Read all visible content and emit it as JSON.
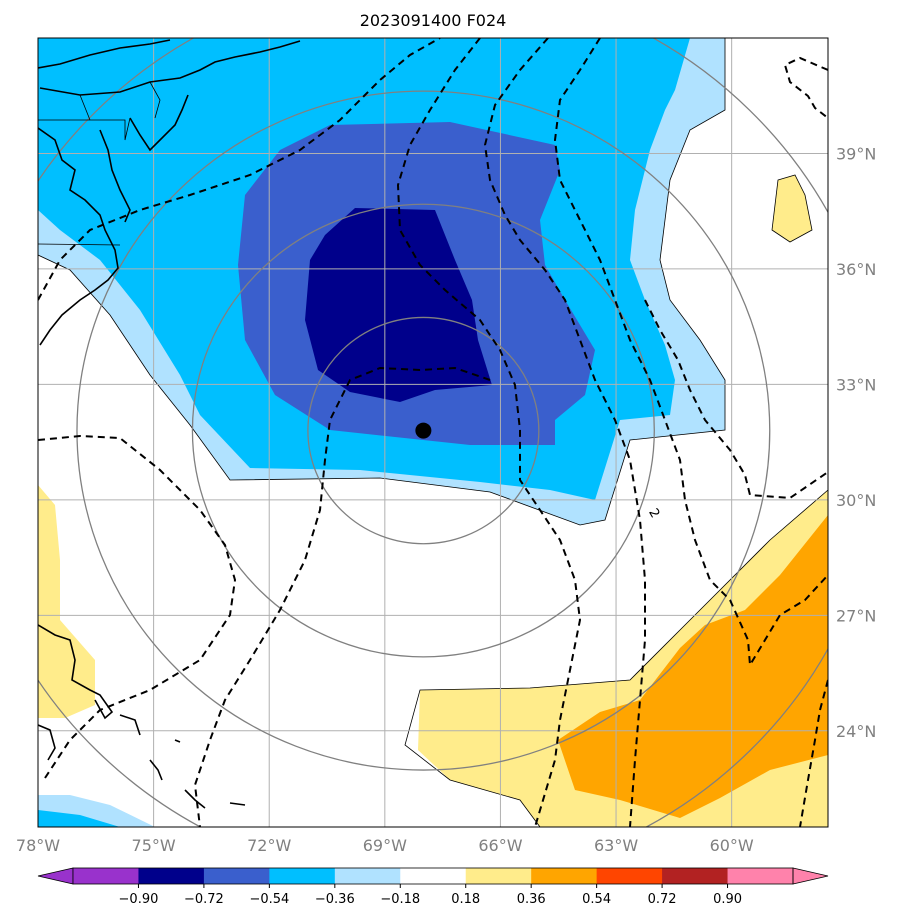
{
  "title": "2023091400 F024",
  "map": {
    "lon_range": [
      -78,
      -57.5
    ],
    "lat_range": [
      21.5,
      42
    ],
    "lon_ticks": [
      {
        "value": -78,
        "label": "78°W"
      },
      {
        "value": -75,
        "label": "75°W"
      },
      {
        "value": -72,
        "label": "72°W"
      },
      {
        "value": -69,
        "label": "69°W"
      },
      {
        "value": -66,
        "label": "66°W"
      },
      {
        "value": -63,
        "label": "63°W"
      },
      {
        "value": -60,
        "label": "60°W"
      }
    ],
    "lat_ticks": [
      {
        "value": 39,
        "label": "39°N"
      },
      {
        "value": 36,
        "label": "36°N"
      },
      {
        "value": 33,
        "label": "33°N"
      },
      {
        "value": 30,
        "label": "30°N"
      },
      {
        "value": 27,
        "label": "27°N"
      },
      {
        "value": 24,
        "label": "24°N"
      }
    ],
    "storm_center": {
      "lon": -68.0,
      "lat": 31.8
    },
    "range_rings_deg": [
      3,
      6,
      9,
      12
    ]
  },
  "contour_labels": [
    {
      "text": "2",
      "lon": -62.1,
      "lat": 29.6
    }
  ],
  "colorbar": {
    "labels": [
      "−0.90",
      "−0.72",
      "−0.54",
      "−0.36",
      "−0.18",
      "0.18",
      "0.36",
      "0.54",
      "0.72",
      "0.90"
    ],
    "colors": [
      "#9932cc",
      "#00008b",
      "#3a5fcd",
      "#00bfff",
      "#b0e2ff",
      "#ffffff",
      "#ffec8b",
      "#ffa500",
      "#ff4500",
      "#b22222",
      "#ff82ab"
    ]
  },
  "colors": {
    "dark_navy": "#00008b",
    "royal_blue": "#3a5fcd",
    "deep_sky": "#00bfff",
    "light_blue": "#b0e2ff",
    "light_yellow": "#ffec8b",
    "orange": "#ffa500",
    "grid": "#b0b0b0",
    "ring": "#808080",
    "coast": "#000000"
  }
}
